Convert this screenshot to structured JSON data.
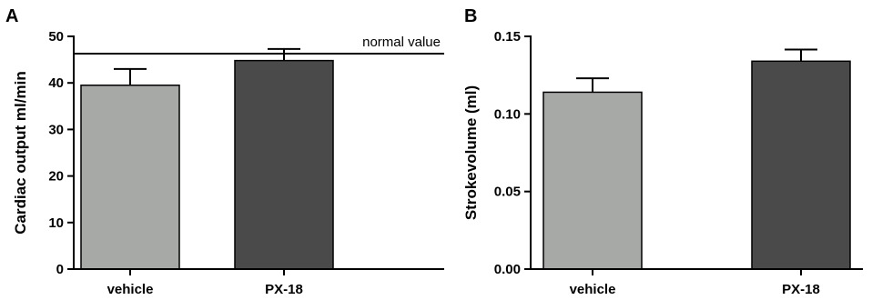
{
  "chart_data": [
    {
      "type": "bar",
      "panel": "A",
      "ylabel": "Cardiac output ml/min",
      "xlabel": "",
      "ylim": [
        0,
        50
      ],
      "yticks": [
        "0",
        "10",
        "20",
        "30",
        "40",
        "50"
      ],
      "categories": [
        "vehicle",
        "PX-18"
      ],
      "values": [
        39.5,
        44.8
      ],
      "errors": [
        3.5,
        2.5
      ],
      "colors": [
        "#a7a9a7",
        "#4a4a4a"
      ],
      "reference_line": {
        "value": 46.3,
        "label": "normal value"
      },
      "grid": false
    },
    {
      "type": "bar",
      "panel": "B",
      "ylabel": "Strokevolume (ml)",
      "xlabel": "",
      "ylim": [
        0,
        0.15
      ],
      "yticks": [
        "0.00",
        "0.05",
        "0.10",
        "0.15"
      ],
      "categories": [
        "vehicle",
        "PX-18"
      ],
      "values": [
        0.114,
        0.134
      ],
      "errors": [
        0.009,
        0.0075
      ],
      "colors": [
        "#a7a9a7",
        "#4a4a4a"
      ],
      "grid": false
    }
  ]
}
